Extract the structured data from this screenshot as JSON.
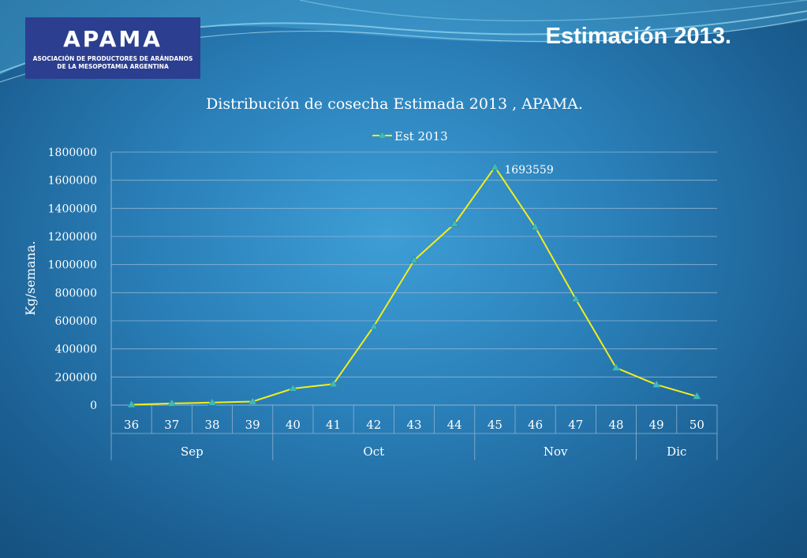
{
  "header": {
    "title": "Estimación 2013.",
    "logo": {
      "name": "APAMA",
      "subtitle": "ASOCIACIÓN DE PRODUCTORES DE ARÁNDANOS\nDE LA MESOPOTAMIA ARGENTINA"
    }
  },
  "colors": {
    "line": "#f2ee1a",
    "marker": "#3fb9c4",
    "grid": "#8fb3d1",
    "text": "#ffffff",
    "logo_background": "#2c3e8f"
  },
  "chart_data": {
    "type": "line",
    "title": "Distribución de cosecha Estimada 2013 , APAMA.",
    "ylabel": "Kg/semana.",
    "xlabel": "",
    "ylim": [
      0,
      1800000
    ],
    "y_ticks": [
      0,
      200000,
      400000,
      600000,
      800000,
      1000000,
      1200000,
      1400000,
      1600000,
      1800000
    ],
    "grid": true,
    "legend_position": "top",
    "categories": [
      "36",
      "37",
      "38",
      "39",
      "40",
      "41",
      "42",
      "43",
      "44",
      "45",
      "46",
      "47",
      "48",
      "49",
      "50"
    ],
    "groups": [
      {
        "label": "Sep",
        "span": 4
      },
      {
        "label": "Oct",
        "span": 5
      },
      {
        "label": "Nov",
        "span": 4
      },
      {
        "label": "Dic",
        "span": 2
      }
    ],
    "series": [
      {
        "name": "Est 2013",
        "values": [
          3000,
          12000,
          18000,
          25000,
          118000,
          150000,
          560000,
          1030000,
          1290000,
          1693559,
          1265000,
          755000,
          265000,
          145000,
          62000
        ]
      }
    ],
    "annotations": [
      {
        "category": "45",
        "text": "1693559"
      }
    ]
  }
}
